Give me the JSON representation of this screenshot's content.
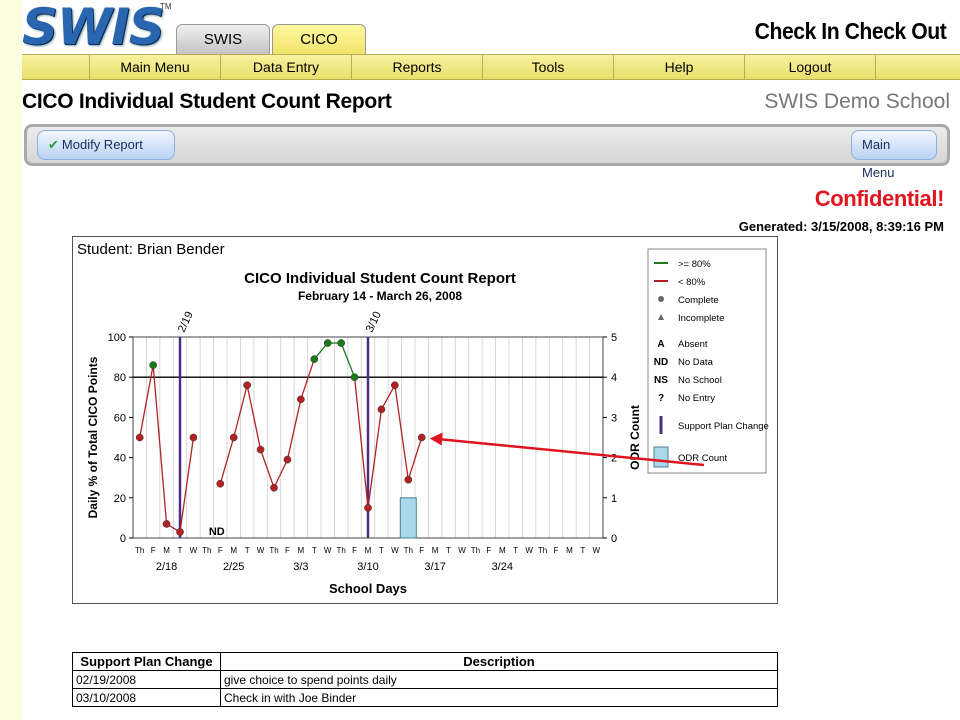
{
  "header": {
    "logo": "SWIS",
    "logo_tm": "TM",
    "tabs": [
      {
        "label": "SWIS"
      },
      {
        "label": "CICO"
      }
    ],
    "app_title": "Check In Check Out"
  },
  "nav": {
    "items": [
      {
        "label": "Main Menu"
      },
      {
        "label": "Data Entry"
      },
      {
        "label": "Reports"
      },
      {
        "label": "Tools"
      },
      {
        "label": "Help"
      },
      {
        "label": "Logout"
      }
    ]
  },
  "page": {
    "title": "CICO Individual Student Count Report",
    "school": "SWIS Demo School"
  },
  "toolbar": {
    "modify_label": "Modify Report",
    "main_menu_label": "Main Menu"
  },
  "meta": {
    "confidential": "Confidential!",
    "generated": "Generated: 3/15/2008, 8:39:16 PM"
  },
  "chart_data": {
    "type": "line",
    "student": "Student: Brian Bender",
    "title": "CICO Individual Student Count Report",
    "subtitle": "February 14 - March 26, 2008",
    "xlabel": "School Days",
    "ylabel": "Daily % of Total CICO Points",
    "y2label": "ODR Count",
    "ylim": [
      0,
      100
    ],
    "yticks": [
      0,
      20,
      40,
      60,
      80,
      100
    ],
    "y2lim": [
      0,
      5
    ],
    "y2ticks": [
      0,
      1,
      2,
      3,
      4,
      5
    ],
    "threshold": 80,
    "days": [
      "Th",
      "F",
      "M",
      "T",
      "W",
      "Th",
      "F",
      "M",
      "T",
      "W",
      "Th",
      "F",
      "M",
      "T",
      "W",
      "Th",
      "F",
      "M",
      "T",
      "W",
      "Th",
      "F",
      "M",
      "T",
      "W",
      "Th",
      "F",
      "M",
      "T",
      "W",
      "Th",
      "F",
      "M",
      "T",
      "W"
    ],
    "week_labels": [
      {
        "index": 2,
        "label": "2/18"
      },
      {
        "index": 7,
        "label": "2/25"
      },
      {
        "index": 12,
        "label": "3/3"
      },
      {
        "index": 17,
        "label": "3/10"
      },
      {
        "index": 22,
        "label": "3/17"
      },
      {
        "index": 27,
        "label": "3/24"
      }
    ],
    "values": [
      50,
      86,
      7,
      3,
      50,
      null,
      27,
      50,
      76,
      44,
      25,
      39,
      69,
      89,
      97,
      97,
      80,
      15,
      64,
      76,
      29,
      50,
      null,
      null,
      null,
      null,
      null,
      null,
      null,
      null,
      null,
      null,
      null,
      null,
      null
    ],
    "notes": [
      {
        "index": 5,
        "label": "ND"
      }
    ],
    "plan_changes": [
      {
        "index": 3.5,
        "label": "2/19"
      },
      {
        "index": 17.5,
        "label": "3/10"
      }
    ],
    "odr_counts": [
      {
        "index": 20,
        "value": 1
      }
    ],
    "legend": [
      {
        "symbol": "line-green",
        "label": ">= 80%"
      },
      {
        "symbol": "line-red",
        "label": "< 80%"
      },
      {
        "symbol": "circle",
        "label": "Complete"
      },
      {
        "symbol": "triangle",
        "label": "Incomplete"
      },
      {
        "symbol": "A",
        "label": "Absent"
      },
      {
        "symbol": "ND",
        "label": "No Data"
      },
      {
        "symbol": "NS",
        "label": "No School"
      },
      {
        "symbol": "?",
        "label": "No Entry"
      },
      {
        "symbol": "bar-purple",
        "label": "Support Plan Change"
      },
      {
        "symbol": "box-blue",
        "label": "ODR Count"
      }
    ],
    "colors": {
      "above": "#1a7a1a",
      "below": "#b22222",
      "plan": "#4b2d86",
      "odr": "#a8d8ea",
      "arrow": "#e0141e"
    }
  },
  "support_table": {
    "headers": [
      "Support Plan Change",
      "Description"
    ],
    "rows": [
      {
        "date": "02/19/2008",
        "desc": "give choice to spend points daily"
      },
      {
        "date": "03/10/2008",
        "desc": "Check in with Joe Binder"
      }
    ]
  }
}
